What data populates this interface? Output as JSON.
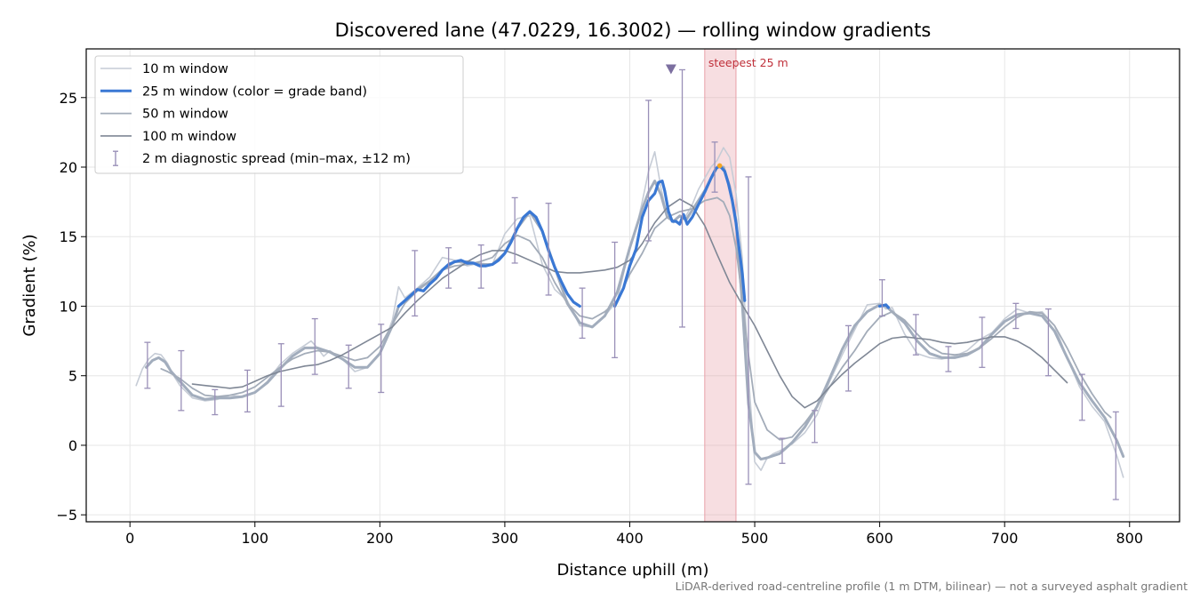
{
  "chart_data": {
    "type": "line",
    "title": "Discovered lane (47.0229, 16.3002) — rolling window gradients",
    "xlabel": "Distance uphill (m)",
    "ylabel": "Gradient (%)",
    "xlim": [
      -35,
      840
    ],
    "ylim": [
      -5.5,
      28.5
    ],
    "xticks": [
      0,
      100,
      200,
      300,
      400,
      500,
      600,
      700,
      800
    ],
    "yticks": [
      -5,
      0,
      5,
      10,
      15,
      20,
      25
    ],
    "ytick_labels": [
      "−5",
      "0",
      "5",
      "10",
      "15",
      "20",
      "25"
    ],
    "grid": true,
    "legend_position": "top-left",
    "note": "LiDAR-derived road-centreline profile (1 m DTM, bilinear) — not a surveyed asphalt gradient",
    "highlight": {
      "x0": 460,
      "x1": 485,
      "label": "steepest 25 m",
      "color": "#e8a0a8"
    },
    "marker": {
      "x": 433,
      "y": 27.0,
      "shape": "triangle-down",
      "color": "#7c6fa0"
    },
    "peak_point": {
      "x": 472,
      "y": 20.1,
      "color": "#f5a623"
    },
    "series": [
      {
        "name": "10 m window",
        "color": "#c6ccd6",
        "width": 1.6,
        "x": [
          5,
          10,
          15,
          20,
          25,
          30,
          35,
          40,
          50,
          60,
          70,
          80,
          90,
          100,
          110,
          120,
          130,
          140,
          145,
          150,
          155,
          160,
          170,
          180,
          190,
          200,
          210,
          215,
          220,
          230,
          240,
          250,
          260,
          270,
          280,
          290,
          300,
          310,
          320,
          330,
          340,
          350,
          360,
          370,
          380,
          390,
          400,
          405,
          410,
          415,
          420,
          425,
          430,
          435,
          440,
          445,
          450,
          455,
          460,
          465,
          470,
          475,
          480,
          485,
          490,
          495,
          500,
          505,
          510,
          515,
          520,
          530,
          540,
          550,
          560,
          570,
          580,
          590,
          600,
          605,
          610,
          620,
          630,
          640,
          650,
          660,
          670,
          680,
          690,
          700,
          710,
          720,
          730,
          740,
          750,
          760,
          770,
          780,
          790,
          795
        ],
        "y": [
          4.3,
          5.5,
          6.2,
          6.6,
          6.5,
          5.9,
          5.0,
          4.3,
          3.4,
          3.2,
          3.3,
          3.6,
          3.5,
          3.8,
          4.6,
          5.8,
          6.6,
          7.2,
          7.5,
          7.0,
          6.4,
          6.8,
          6.2,
          5.3,
          5.6,
          6.6,
          9.0,
          11.4,
          10.6,
          11.3,
          12.1,
          13.5,
          13.3,
          12.9,
          13.1,
          13.0,
          15.2,
          16.3,
          16.5,
          13.0,
          11.2,
          10.4,
          8.6,
          8.5,
          9.3,
          10.4,
          14.3,
          15.5,
          17.5,
          19.7,
          21.1,
          18.5,
          16.5,
          16.0,
          16.5,
          16.5,
          17.3,
          18.4,
          19.2,
          20.0,
          20.5,
          21.4,
          20.7,
          18.1,
          13.5,
          5.0,
          -1.2,
          -1.8,
          -0.9,
          -0.6,
          -0.4,
          0.1,
          0.9,
          2.2,
          4.6,
          6.5,
          8.3,
          10.1,
          10.2,
          9.8,
          9.9,
          8.0,
          6.6,
          6.3,
          6.2,
          6.4,
          6.8,
          7.6,
          8.1,
          9.1,
          9.8,
          9.5,
          9.6,
          8.6,
          6.3,
          4.2,
          2.8,
          1.7,
          -0.8,
          -2.3
        ]
      },
      {
        "name": "25 m window (color = grade band)",
        "color": "#a2adbd",
        "width": 3.0,
        "x": [
          13,
          18,
          23,
          28,
          33,
          40,
          50,
          60,
          70,
          80,
          90,
          100,
          110,
          120,
          130,
          140,
          150,
          160,
          170,
          180,
          190,
          200,
          210,
          215,
          220,
          230,
          240,
          250,
          260,
          270,
          280,
          290,
          300,
          310,
          320,
          330,
          340,
          350,
          360,
          370,
          380,
          390,
          400,
          410,
          415,
          420,
          425,
          430,
          435,
          440,
          445,
          450,
          455,
          460,
          465,
          470,
          475,
          480,
          485,
          490,
          495,
          500,
          505,
          510,
          520,
          530,
          540,
          550,
          560,
          570,
          580,
          590,
          600,
          605,
          610,
          620,
          630,
          640,
          650,
          660,
          670,
          680,
          690,
          700,
          710,
          720,
          730,
          740,
          750,
          760,
          770,
          780,
          790,
          795
        ],
        "y": [
          5.6,
          6.1,
          6.3,
          6.0,
          5.3,
          4.6,
          3.6,
          3.3,
          3.4,
          3.4,
          3.5,
          3.8,
          4.5,
          5.5,
          6.4,
          7.0,
          7.0,
          6.7,
          6.2,
          5.6,
          5.6,
          6.6,
          8.6,
          10.0,
          10.4,
          11.2,
          11.8,
          12.6,
          13.2,
          13.2,
          13.0,
          13.0,
          13.8,
          15.6,
          16.8,
          15.4,
          12.8,
          10.2,
          8.8,
          8.5,
          9.3,
          11.0,
          14.2,
          17.0,
          18.2,
          19.0,
          18.0,
          16.4,
          16.1,
          16.5,
          16.2,
          16.9,
          17.6,
          18.3,
          19.2,
          20.0,
          20.0,
          18.6,
          16.2,
          10.2,
          3.0,
          -0.5,
          -1.0,
          -0.9,
          -0.6,
          0.2,
          1.3,
          2.8,
          4.8,
          6.9,
          8.6,
          9.6,
          10.1,
          10.0,
          9.6,
          8.8,
          7.5,
          6.6,
          6.3,
          6.3,
          6.5,
          7.0,
          8.0,
          8.9,
          9.4,
          9.5,
          9.3,
          8.2,
          6.3,
          4.5,
          3.2,
          2.0,
          0.3,
          -0.8
        ]
      },
      {
        "name": "50 m window",
        "color": "#a3acb9",
        "width": 1.8,
        "x": [
          25,
          30,
          40,
          50,
          60,
          70,
          80,
          90,
          100,
          110,
          120,
          130,
          140,
          150,
          160,
          170,
          180,
          190,
          200,
          210,
          220,
          230,
          240,
          250,
          260,
          270,
          280,
          290,
          300,
          310,
          320,
          330,
          340,
          350,
          360,
          370,
          380,
          390,
          400,
          410,
          420,
          430,
          440,
          450,
          460,
          470,
          475,
          480,
          485,
          490,
          495,
          500,
          510,
          520,
          530,
          540,
          550,
          560,
          570,
          580,
          590,
          600,
          610,
          620,
          630,
          640,
          650,
          660,
          670,
          680,
          690,
          700,
          710,
          720,
          730,
          740,
          750,
          760,
          770,
          780,
          785
        ],
        "y": [
          5.5,
          5.3,
          4.8,
          4.1,
          3.6,
          3.5,
          3.6,
          3.8,
          4.2,
          4.9,
          5.6,
          6.2,
          6.6,
          6.8,
          6.7,
          6.4,
          6.1,
          6.3,
          7.1,
          8.7,
          10.2,
          11.1,
          11.8,
          12.6,
          12.9,
          13.0,
          13.2,
          13.5,
          14.5,
          15.1,
          14.7,
          13.5,
          11.7,
          10.2,
          9.3,
          9.1,
          9.6,
          10.4,
          12.3,
          13.8,
          15.6,
          16.4,
          16.8,
          17.0,
          17.6,
          17.8,
          17.5,
          16.5,
          14.2,
          10.5,
          6.5,
          3.1,
          1.1,
          0.4,
          0.6,
          1.6,
          2.8,
          4.2,
          5.6,
          6.8,
          8.2,
          9.2,
          9.6,
          9.0,
          8.0,
          7.1,
          6.6,
          6.5,
          6.6,
          7.0,
          7.7,
          8.5,
          9.2,
          9.6,
          9.5,
          8.6,
          7.0,
          5.2,
          3.7,
          2.4,
          2.0
        ]
      },
      {
        "name": "100 m window",
        "color": "#7f8795",
        "width": 1.6,
        "x": [
          50,
          60,
          70,
          80,
          90,
          100,
          110,
          120,
          130,
          140,
          150,
          160,
          170,
          180,
          190,
          200,
          210,
          220,
          230,
          240,
          250,
          260,
          270,
          280,
          290,
          300,
          310,
          320,
          330,
          340,
          350,
          360,
          370,
          380,
          390,
          400,
          410,
          420,
          430,
          440,
          450,
          460,
          470,
          480,
          490,
          500,
          510,
          520,
          530,
          540,
          550,
          560,
          570,
          580,
          590,
          600,
          610,
          620,
          630,
          640,
          650,
          660,
          670,
          680,
          690,
          700,
          710,
          720,
          730,
          740,
          750
        ],
        "y": [
          4.4,
          4.3,
          4.2,
          4.1,
          4.2,
          4.6,
          5.0,
          5.3,
          5.5,
          5.7,
          5.8,
          6.1,
          6.5,
          7.0,
          7.5,
          8.0,
          8.5,
          9.5,
          10.4,
          11.2,
          12.0,
          12.6,
          13.2,
          13.7,
          14.0,
          14.0,
          13.7,
          13.3,
          12.9,
          12.5,
          12.4,
          12.4,
          12.5,
          12.6,
          12.8,
          13.3,
          14.5,
          16.0,
          17.1,
          17.7,
          17.2,
          15.8,
          13.7,
          11.7,
          10.1,
          8.6,
          6.8,
          5.0,
          3.5,
          2.7,
          3.2,
          4.2,
          5.1,
          5.9,
          6.6,
          7.3,
          7.7,
          7.8,
          7.7,
          7.6,
          7.4,
          7.3,
          7.4,
          7.6,
          7.8,
          7.8,
          7.5,
          7.0,
          6.3,
          5.4,
          4.5
        ]
      }
    ],
    "band_overlay": {
      "color": "#3a78d4",
      "segments": [
        [
          [
            215,
            10.0
          ],
          [
            220,
            10.4
          ],
          [
            225,
            10.8
          ],
          [
            230,
            11.2
          ],
          [
            235,
            11.1
          ],
          [
            240,
            11.6
          ],
          [
            245,
            12.0
          ],
          [
            250,
            12.6
          ],
          [
            255,
            13.0
          ],
          [
            260,
            13.2
          ],
          [
            265,
            13.3
          ],
          [
            270,
            13.1
          ],
          [
            275,
            13.1
          ],
          [
            280,
            12.9
          ],
          [
            285,
            12.9
          ],
          [
            290,
            13.0
          ],
          [
            295,
            13.3
          ],
          [
            300,
            13.8
          ],
          [
            305,
            14.6
          ],
          [
            310,
            15.6
          ],
          [
            315,
            16.4
          ],
          [
            320,
            16.8
          ],
          [
            325,
            16.4
          ],
          [
            330,
            15.4
          ],
          [
            335,
            14.0
          ],
          [
            340,
            12.8
          ],
          [
            345,
            11.8
          ],
          [
            350,
            10.9
          ],
          [
            355,
            10.3
          ],
          [
            360,
            10.0
          ]
        ],
        [
          [
            388,
            10.0
          ],
          [
            395,
            11.3
          ],
          [
            400,
            12.9
          ],
          [
            405,
            14.1
          ],
          [
            410,
            16.4
          ],
          [
            415,
            17.6
          ],
          [
            420,
            18.1
          ],
          [
            423,
            18.9
          ],
          [
            426,
            19.0
          ],
          [
            428,
            18.3
          ],
          [
            431,
            16.8
          ],
          [
            434,
            16.1
          ],
          [
            437,
            16.1
          ],
          [
            440,
            15.9
          ],
          [
            443,
            16.6
          ],
          [
            446,
            15.9
          ],
          [
            450,
            16.4
          ],
          [
            455,
            17.3
          ],
          [
            460,
            18.2
          ],
          [
            465,
            19.2
          ],
          [
            469,
            19.9
          ],
          [
            472,
            20.1
          ],
          [
            476,
            19.7
          ],
          [
            479,
            18.8
          ],
          [
            482,
            17.6
          ],
          [
            485,
            16.0
          ],
          [
            488,
            13.8
          ],
          [
            490,
            12.4
          ],
          [
            492,
            10.4
          ]
        ],
        [
          [
            600,
            10.0
          ],
          [
            605,
            10.1
          ],
          [
            607,
            9.9
          ]
        ]
      ]
    },
    "error_bars": [
      {
        "x": 14,
        "ymin": 4.1,
        "ymax": 7.4
      },
      {
        "x": 41,
        "ymin": 2.5,
        "ymax": 6.8
      },
      {
        "x": 68,
        "ymin": 2.2,
        "ymax": 4.0
      },
      {
        "x": 94,
        "ymin": 2.4,
        "ymax": 5.4
      },
      {
        "x": 121,
        "ymin": 2.8,
        "ymax": 7.3
      },
      {
        "x": 148,
        "ymin": 5.1,
        "ymax": 9.1
      },
      {
        "x": 175,
        "ymin": 4.1,
        "ymax": 7.2
      },
      {
        "x": 201,
        "ymin": 3.8,
        "ymax": 8.7
      },
      {
        "x": 228,
        "ymin": 9.3,
        "ymax": 14.0
      },
      {
        "x": 255,
        "ymin": 11.3,
        "ymax": 14.2
      },
      {
        "x": 281,
        "ymin": 11.3,
        "ymax": 14.4
      },
      {
        "x": 308,
        "ymin": 13.1,
        "ymax": 17.8
      },
      {
        "x": 335,
        "ymin": 10.8,
        "ymax": 17.4
      },
      {
        "x": 362,
        "ymin": 7.7,
        "ymax": 11.3
      },
      {
        "x": 388,
        "ymin": 6.3,
        "ymax": 14.6
      },
      {
        "x": 415,
        "ymin": 14.7,
        "ymax": 24.8
      },
      {
        "x": 442,
        "ymin": 8.5,
        "ymax": 27.0
      },
      {
        "x": 468,
        "ymin": 18.2,
        "ymax": 21.8
      },
      {
        "x": 495,
        "ymin": -2.8,
        "ymax": 19.3
      },
      {
        "x": 522,
        "ymin": -1.3,
        "ymax": 0.5
      },
      {
        "x": 548,
        "ymin": 0.2,
        "ymax": 2.5
      },
      {
        "x": 575,
        "ymin": 3.9,
        "ymax": 8.6
      },
      {
        "x": 602,
        "ymin": 9.3,
        "ymax": 11.9
      },
      {
        "x": 629,
        "ymin": 6.5,
        "ymax": 9.4
      },
      {
        "x": 655,
        "ymin": 5.3,
        "ymax": 7.1
      },
      {
        "x": 682,
        "ymin": 5.6,
        "ymax": 9.2
      },
      {
        "x": 709,
        "ymin": 8.4,
        "ymax": 10.2
      },
      {
        "x": 735,
        "ymin": 5.0,
        "ymax": 9.8
      },
      {
        "x": 762,
        "ymin": 1.8,
        "ymax": 5.1
      },
      {
        "x": 789,
        "ymin": -3.9,
        "ymax": 2.4
      }
    ],
    "error_bar_color": "#9a90b8",
    "legend_entries": [
      {
        "label": "10 m window",
        "kind": "line",
        "color": "#c6ccd6",
        "width": 1.6
      },
      {
        "label": "25 m window (color = grade band)",
        "kind": "line",
        "color": "#3a78d4",
        "width": 3.0
      },
      {
        "label": "50 m window",
        "kind": "line",
        "color": "#a3acb9",
        "width": 1.8
      },
      {
        "label": "100 m window",
        "kind": "line",
        "color": "#7f8795",
        "width": 1.6
      },
      {
        "label": "2 m diagnostic spread (min–max, ±12 m)",
        "kind": "errorbar",
        "color": "#9a90b8",
        "width": 1.4
      }
    ]
  }
}
